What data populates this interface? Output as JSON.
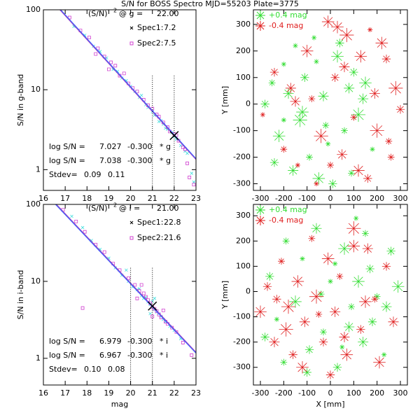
{
  "title": "S/N for BOSS Spectro MJD=55203 Plate=3775",
  "chart_data": [
    {
      "type": "snr",
      "ylabel": "S/N in g-band",
      "xlim": [
        16,
        23
      ],
      "xticks": [
        16,
        17,
        18,
        19,
        20,
        21,
        22,
        23
      ],
      "ylim": [
        0.55,
        100
      ],
      "yticks": [
        1,
        10,
        100
      ],
      "log_y": true,
      "band_label": "(S/N)",
      "band_exp": "2",
      "band_at": "@ g =",
      "mag": {
        "value": 22,
        "label": "22.00"
      },
      "mag_lines": [
        21,
        22
      ],
      "series": [
        {
          "name": "Spec1:",
          "marker": "x",
          "color": "#40dede",
          "snr2": 7.2,
          "x": [
            17.4,
            17.9,
            18.3,
            18.6,
            18.9,
            19.2,
            19.4,
            19.6,
            19.8,
            20.0,
            20.2,
            20.4,
            20.5,
            20.7,
            20.8,
            21.0,
            21.1,
            21.3,
            21.4,
            21.6,
            21.7,
            21.9,
            22.0,
            22.1,
            22.3,
            22.5,
            22.6,
            22.8,
            22.9,
            21.5
          ],
          "values": [
            62,
            48,
            35,
            30,
            25,
            18,
            17,
            14,
            13,
            11,
            9.5,
            8.0,
            8.5,
            6.5,
            6.0,
            5.3,
            4.8,
            4.0,
            4.1,
            3.3,
            3.2,
            2.9,
            2.6,
            2.4,
            2.0,
            1.7,
            1.6,
            0.9,
            0.7,
            3.7
          ]
        },
        {
          "name": "Spec2:",
          "marker": "square",
          "color": "#d040d0",
          "snr2": 7.5,
          "x": [
            17.2,
            17.7,
            18.1,
            18.5,
            18.8,
            19.1,
            19.3,
            19.5,
            19.7,
            19.9,
            20.1,
            20.3,
            20.6,
            20.8,
            21.0,
            21.2,
            21.3,
            21.5,
            21.7,
            21.8,
            22.0,
            22.1,
            22.2,
            22.4,
            22.5,
            22.6,
            22.7,
            22.9,
            18.4,
            19.0
          ],
          "values": [
            80,
            55,
            45,
            33,
            26,
            22,
            20,
            15,
            16,
            12,
            10.5,
            9.5,
            7.5,
            6.4,
            5.8,
            4.9,
            4.6,
            3.9,
            3.4,
            3.0,
            2.8,
            2.7,
            2.3,
            1.9,
            1.8,
            1.2,
            0.8,
            0.65,
            28,
            18
          ]
        }
      ],
      "fits": [
        {
          "prefix": "log S/N =",
          "intercept": 7.027,
          "slope": {
            "value": -0.3,
            "label": "-0.300"
          },
          "suffix": "* g",
          "color": "#a040c0"
        },
        {
          "prefix": "log S/N =",
          "intercept": 7.038,
          "slope": {
            "value": -0.3,
            "label": "-0.300"
          },
          "suffix": "* g",
          "color": "#4060ff"
        }
      ],
      "stdev_label": "Stdev=",
      "stdev": [
        0.09,
        0.11
      ]
    },
    {
      "type": "field",
      "ylabel": "Y [mm]",
      "xlim": [
        -330,
        330
      ],
      "xticks": [
        -300,
        -200,
        -100,
        0,
        100,
        200,
        300
      ],
      "ylim": [
        -325,
        355
      ],
      "yticks": [
        -300,
        -200,
        -100,
        0,
        100,
        200,
        300
      ],
      "series": [
        {
          "name": "+0.4 mag",
          "color": "#33dd33",
          "x": [
            -280,
            -250,
            -220,
            -200,
            -180,
            -150,
            -130,
            -110,
            -90,
            -70,
            -50,
            -30,
            -10,
            10,
            30,
            60,
            80,
            100,
            120,
            150,
            180,
            -240,
            -160,
            -60,
            -20,
            40,
            -120,
            -200,
            90,
            140
          ],
          "values": [
            0,
            80,
            -120,
            150,
            40,
            220,
            -60,
            100,
            -200,
            250,
            -280,
            30,
            -150,
            -300,
            180,
            -100,
            60,
            120,
            -40,
            80,
            -170,
            -220,
            -250,
            160,
            -80,
            230,
            -30,
            -60,
            -260,
            20
          ],
          "sizes": [
            0.2,
            0.15,
            0.3,
            0.1,
            0.25,
            0.1,
            0.35,
            0.2,
            0.15,
            0.1,
            0.3,
            0.25,
            0.1,
            0.2,
            0.3,
            0.15,
            0.25,
            0.2,
            0.35,
            0.3,
            0.1,
            0.2,
            0.25,
            0.1,
            0.15,
            0.2,
            0.3,
            0.1,
            0.15,
            0.25
          ]
        },
        {
          "name": "-0.4 mag",
          "color": "#e02020",
          "x": [
            -290,
            -240,
            -200,
            -170,
            -140,
            -100,
            -80,
            -40,
            -10,
            20,
            50,
            70,
            100,
            130,
            160,
            190,
            220,
            250,
            280,
            300,
            -60,
            0,
            60,
            120,
            200,
            240,
            -150,
            30,
            170,
            260
          ],
          "values": [
            -40,
            120,
            -170,
            60,
            -230,
            200,
            20,
            -120,
            310,
            100,
            -190,
            260,
            -50,
            180,
            -280,
            40,
            230,
            -140,
            60,
            -20,
            -300,
            -230,
            140,
            -250,
            -100,
            170,
            10,
            290,
            280,
            -200
          ],
          "sizes": [
            0.1,
            0.2,
            0.15,
            0.25,
            0.1,
            0.3,
            0.15,
            0.35,
            0.3,
            0.2,
            0.25,
            0.35,
            0.15,
            0.3,
            0.2,
            0.25,
            0.3,
            0.15,
            0.35,
            0.2,
            0.1,
            0.15,
            0.25,
            0.3,
            0.35,
            0.2,
            0.25,
            0.3,
            0.1,
            0.15
          ]
        }
      ]
    },
    {
      "type": "snr",
      "ylabel": "S/N in i-band",
      "xlabel": "mag",
      "xlim": [
        16,
        23
      ],
      "xticks": [
        16,
        17,
        18,
        19,
        20,
        21,
        22,
        23
      ],
      "ylim": [
        0.45,
        100
      ],
      "yticks": [
        1,
        10,
        100
      ],
      "log_y": true,
      "band_label": "(S/N)",
      "band_exp": "2",
      "band_at": "@ i =",
      "mag": {
        "value": 21,
        "label": "21.00"
      },
      "mag_lines": [
        20,
        21
      ],
      "series": [
        {
          "name": "Spec1:",
          "marker": "x",
          "color": "#40dede",
          "snr2": 22.8,
          "x": [
            17.3,
            17.8,
            18.2,
            18.6,
            19.0,
            19.3,
            19.6,
            19.9,
            20.1,
            20.3,
            20.5,
            20.6,
            20.7,
            20.8,
            20.9,
            21.0,
            21.0,
            21.1,
            21.2,
            21.3,
            21.4,
            21.5,
            21.6,
            21.8,
            22.0,
            22.3,
            19.8,
            20.4,
            21.1,
            20.9
          ],
          "values": [
            70,
            50,
            34,
            26,
            20,
            15,
            12,
            10,
            8.5,
            7.8,
            6.5,
            6.0,
            6.2,
            5.4,
            5.0,
            4.8,
            5.5,
            4.3,
            4.0,
            3.8,
            3.5,
            3.2,
            3.0,
            2.6,
            2.3,
            1.8,
            14,
            8,
            6,
            3.8
          ]
        },
        {
          "name": "Spec2:",
          "marker": "square",
          "color": "#d040d0",
          "snr2": 21.6,
          "x": [
            16.9,
            17.5,
            17.9,
            18.4,
            18.8,
            19.2,
            19.5,
            19.9,
            20.2,
            20.4,
            20.6,
            20.7,
            20.8,
            20.9,
            21.0,
            21.1,
            21.2,
            21.3,
            21.4,
            21.6,
            21.7,
            21.9,
            22.1,
            22.4,
            22.8,
            17.8,
            20.5,
            21.0,
            20.3,
            21.5
          ],
          "values": [
            85,
            60,
            44,
            30,
            24,
            17,
            14,
            11,
            9,
            7.5,
            7,
            6.3,
            5.7,
            5.2,
            4.6,
            4.4,
            4.1,
            3.7,
            3.4,
            3.0,
            2.8,
            2.5,
            2.2,
            1.6,
            1.1,
            4.5,
            9,
            3.5,
            6,
            4.2
          ]
        }
      ],
      "fits": [
        {
          "prefix": "log S/N =",
          "intercept": 6.979,
          "slope": {
            "value": -0.3,
            "label": "-0.300"
          },
          "suffix": "* i",
          "color": "#a040c0"
        },
        {
          "prefix": "log S/N =",
          "intercept": 6.967,
          "slope": {
            "value": -0.3,
            "label": "-0.300"
          },
          "suffix": "* i",
          "color": "#4060ff"
        }
      ],
      "stdev_label": "Stdev=",
      "stdev": [
        {
          "value": 0.1,
          "label": "0.10"
        },
        0.08
      ]
    },
    {
      "type": "field",
      "ylabel": "Y [mm]",
      "xlabel": "X [mm]",
      "xlim": [
        -330,
        330
      ],
      "xticks": [
        -300,
        -200,
        -100,
        0,
        100,
        200,
        300
      ],
      "ylim": [
        -370,
        345
      ],
      "yticks": [
        -300,
        -200,
        -100,
        0,
        100,
        200,
        300
      ],
      "series": [
        {
          "name": "+0.4 mag",
          "color": "#33dd33",
          "x": [
            -260,
            -230,
            -190,
            -150,
            -120,
            -90,
            -60,
            -30,
            0,
            30,
            60,
            90,
            110,
            140,
            170,
            200,
            230,
            260,
            290,
            -200,
            -100,
            20,
            80,
            150,
            -280,
            50,
            120,
            -40,
            180,
            240
          ],
          "values": [
            60,
            -110,
            200,
            -40,
            130,
            -230,
            250,
            -160,
            40,
            -300,
            170,
            -60,
            290,
            -200,
            90,
            -20,
            -250,
            160,
            20,
            -280,
            -320,
            110,
            -140,
            230,
            -180,
            -220,
            40,
            -10,
            -120,
            -60
          ],
          "sizes": [
            0.2,
            0.1,
            0.15,
            0.3,
            0.1,
            0.2,
            0.25,
            0.15,
            0.1,
            0.2,
            0.3,
            0.15,
            0.1,
            0.25,
            0.2,
            0.15,
            0.1,
            0.2,
            0.3,
            0.15,
            0.2,
            0.1,
            0.25,
            0.15,
            0.2,
            0.1,
            0.3,
            0.15,
            0.2,
            0.25
          ]
        },
        {
          "name": "-0.4 mag",
          "color": "#e02020",
          "x": [
            -300,
            -270,
            -240,
            -210,
            -180,
            -160,
            -140,
            -110,
            -80,
            -60,
            -30,
            -10,
            20,
            40,
            70,
            100,
            130,
            160,
            190,
            210,
            240,
            270,
            -190,
            -120,
            -50,
            60,
            150,
            -230,
            0,
            100
          ],
          "values": [
            -80,
            20,
            -200,
            120,
            -60,
            -250,
            40,
            -120,
            210,
            -20,
            -200,
            130,
            -80,
            60,
            -250,
            250,
            -150,
            170,
            -30,
            -280,
            100,
            -120,
            -150,
            -300,
            -90,
            -180,
            -40,
            -30,
            -330,
            180
          ],
          "sizes": [
            0.3,
            0.2,
            0.25,
            0.15,
            0.35,
            0.2,
            0.3,
            0.25,
            0.15,
            0.35,
            0.2,
            0.3,
            0.25,
            0.15,
            0.3,
            0.35,
            0.2,
            0.25,
            0.15,
            0.3,
            0.2,
            0.25,
            0.35,
            0.3,
            0.15,
            0.25,
            0.3,
            0.2,
            0.2,
            0.3
          ]
        }
      ]
    }
  ]
}
